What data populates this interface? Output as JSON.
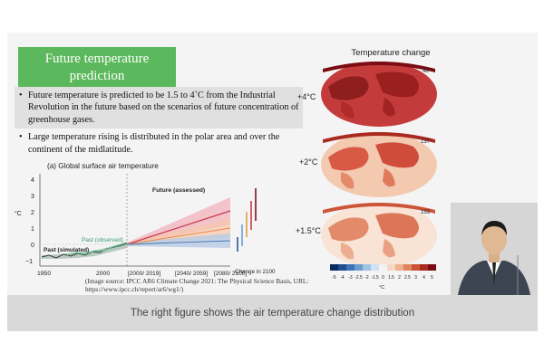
{
  "slide": {
    "title": "Future temperature prediction",
    "bullets": [
      "Future temperature is predicted to be 1.5 to 4˚C from the Industrial Revolution in the future based on the scenarios of future concentration of greenhouse gases.",
      "Large temperature rising is distributed in the polar area and over the continent of the midlatitude."
    ],
    "bullet_marker": "•",
    "source": "(Image source: IPCC AR6 Climate Change 2021: The Physical Science Basis, URL: https://www.ipcc.ch/report/ar6/wg1/)"
  },
  "graph": {
    "title": "(a) Global surface air temperature",
    "y_unit": "°C",
    "y_ticks": [
      "4",
      "3",
      "2",
      "1",
      "0",
      "−1"
    ],
    "x_ticks": [
      "1950",
      "2000",
      "[2000/\n2019]",
      "[2040/\n2059]",
      "[2080/\n2100]"
    ],
    "change_label": "Change in 2100",
    "future_label": "Future (assessed)",
    "past_obs_label": "Past (observed)",
    "past_sim_label": "Past (simulated)"
  },
  "maps": {
    "title": "Temperature change",
    "panels": [
      {
        "label": "+4°C",
        "number": "48"
      },
      {
        "label": "+2°C",
        "number": "137"
      },
      {
        "label": "+1.5°C",
        "number": "153"
      }
    ],
    "colorbar_ticks": [
      "-5",
      "-4",
      "-3",
      "-2.5",
      "-2",
      "-1.5",
      "0",
      "1.5",
      "2",
      "2.5",
      "3",
      "4",
      "5"
    ],
    "colorbar_unit": "°C",
    "colorbar_colors": [
      "#0b2a63",
      "#1f4d8f",
      "#3f73b5",
      "#6b9bd0",
      "#9fc3e3",
      "#cfe2f1",
      "#f2f2f2",
      "#f6d7c3",
      "#efb08f",
      "#e1845f",
      "#cc5539",
      "#a92a1f",
      "#7a0c12"
    ]
  },
  "caption": "The right figure shows the air temperature change distribution",
  "colors": {
    "title_bg": "#5cb85c",
    "future_red": "#c83a4a",
    "obs_green": "#5fbf8f"
  }
}
